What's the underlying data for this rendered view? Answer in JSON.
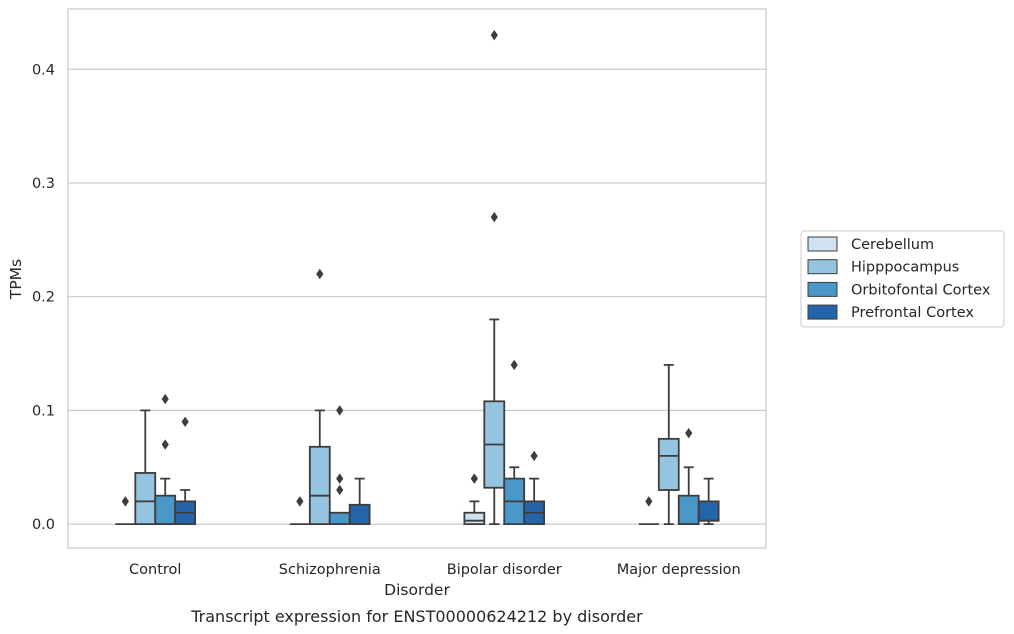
{
  "caption": "Transcript expression for ENST00000624212 by disorder",
  "chart_data": {
    "type": "box",
    "xlabel": "Disorder",
    "ylabel": "TPMs",
    "ylim": [
      -0.021,
      0.453
    ],
    "yticks": [
      0.0,
      0.1,
      0.2,
      0.3,
      0.4
    ],
    "ytick_labels": [
      "0.0",
      "0.1",
      "0.2",
      "0.3",
      "0.4"
    ],
    "grid": "horizontal",
    "legend_position": "right",
    "categories": [
      "Control",
      "Schizophrenia",
      "Bipolar disorder",
      "Major depression"
    ],
    "series": [
      {
        "name": "Cerebellum",
        "color": "#d0e1f2",
        "boxes": [
          {
            "whislo": 0.0,
            "q1": 0.0,
            "med": 0.0,
            "q3": 0.0,
            "whishi": 0.0,
            "fliers": [
              0.02
            ]
          },
          {
            "whislo": 0.0,
            "q1": 0.0,
            "med": 0.0,
            "q3": 0.0,
            "whishi": 0.0,
            "fliers": [
              0.02
            ]
          },
          {
            "whislo": 0.0,
            "q1": 0.0,
            "med": 0.003,
            "q3": 0.01,
            "whishi": 0.02,
            "fliers": [
              0.04
            ]
          },
          {
            "whislo": 0.0,
            "q1": 0.0,
            "med": 0.0,
            "q3": 0.0,
            "whishi": 0.0,
            "fliers": [
              0.02
            ]
          }
        ]
      },
      {
        "name": "Hipppocampus",
        "color": "#94c4df",
        "boxes": [
          {
            "whislo": 0.0,
            "q1": 0.0,
            "med": 0.02,
            "q3": 0.045,
            "whishi": 0.1,
            "fliers": []
          },
          {
            "whislo": 0.0,
            "q1": 0.0,
            "med": 0.025,
            "q3": 0.068,
            "whishi": 0.1,
            "fliers": [
              0.22
            ]
          },
          {
            "whislo": 0.0,
            "q1": 0.032,
            "med": 0.07,
            "q3": 0.108,
            "whishi": 0.18,
            "fliers": [
              0.27,
              0.43
            ]
          },
          {
            "whislo": 0.0,
            "q1": 0.03,
            "med": 0.06,
            "q3": 0.075,
            "whishi": 0.14,
            "fliers": []
          }
        ]
      },
      {
        "name": "Orbitofontal Cortex",
        "color": "#4a98c9",
        "boxes": [
          {
            "whislo": 0.0,
            "q1": 0.0,
            "med": 0.0,
            "q3": 0.025,
            "whishi": 0.04,
            "fliers": [
              0.07,
              0.11
            ]
          },
          {
            "whislo": 0.0,
            "q1": 0.0,
            "med": 0.0,
            "q3": 0.01,
            "whishi": 0.01,
            "fliers": [
              0.03,
              0.04,
              0.1
            ]
          },
          {
            "whislo": 0.0,
            "q1": 0.0,
            "med": 0.02,
            "q3": 0.04,
            "whishi": 0.05,
            "fliers": [
              0.14
            ]
          },
          {
            "whislo": 0.0,
            "q1": 0.0,
            "med": 0.0,
            "q3": 0.025,
            "whishi": 0.05,
            "fliers": [
              0.08
            ]
          }
        ]
      },
      {
        "name": "Prefrontal Cortex",
        "color": "#2464aa",
        "boxes": [
          {
            "whislo": 0.0,
            "q1": 0.0,
            "med": 0.01,
            "q3": 0.02,
            "whishi": 0.03,
            "fliers": [
              0.09
            ]
          },
          {
            "whislo": 0.0,
            "q1": 0.0,
            "med": 0.0,
            "q3": 0.017,
            "whishi": 0.04,
            "fliers": []
          },
          {
            "whislo": 0.0,
            "q1": 0.0,
            "med": 0.01,
            "q3": 0.02,
            "whishi": 0.04,
            "fliers": [
              0.06
            ]
          },
          {
            "whislo": 0.0,
            "q1": 0.003,
            "med": 0.003,
            "q3": 0.02,
            "whishi": 0.04,
            "fliers": []
          }
        ]
      }
    ]
  }
}
